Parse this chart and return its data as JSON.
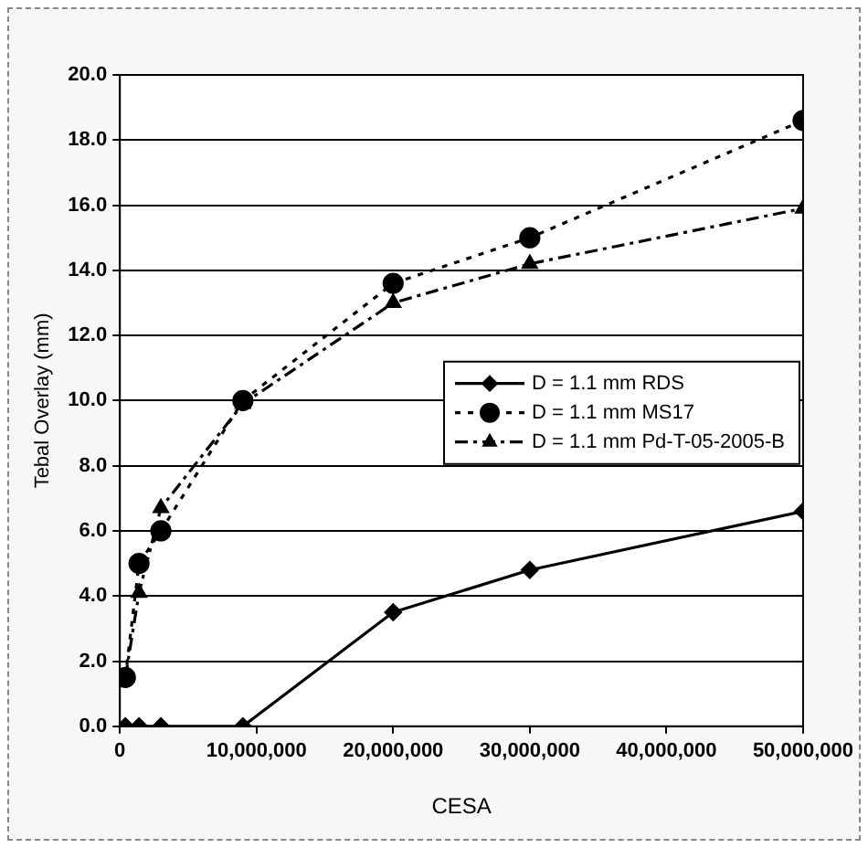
{
  "chart_data": {
    "type": "line",
    "xlabel": "CESA",
    "ylabel": "Tebal Overlay (mm)",
    "x": [
      400000,
      1400000,
      3000000,
      9000000,
      20000000,
      30000000,
      50000000
    ],
    "series": [
      {
        "name": "D = 1.1 mm RDS",
        "color": "#000000",
        "values": [
          0,
          0,
          0,
          0,
          3.5,
          4.8,
          6.6
        ],
        "marker": "diamond",
        "line_style": "solid"
      },
      {
        "name": "D = 1.1 mm MS17",
        "color": "#000000",
        "values": [
          1.5,
          5.0,
          6.0,
          10.0,
          13.6,
          15.0,
          18.6
        ],
        "marker": "circle",
        "line_style": "dotted"
      },
      {
        "name": "D = 1.1 mm Pd-T-05-2005-B",
        "color": "#000000",
        "values": [
          1.5,
          4.1,
          6.7,
          9.9,
          13.0,
          14.2,
          15.9
        ],
        "marker": "triangle",
        "line_style": "dashed"
      }
    ],
    "xlim": [
      0,
      50000000
    ],
    "xticks": [
      0,
      {
        "value": 10000000,
        "label": "10,000,000"
      },
      {
        "value": 20000000,
        "label": "20,000,000"
      },
      {
        "value": 30000000,
        "label": "30,000,000"
      },
      {
        "value": 40000000,
        "label": "40,000,000"
      },
      {
        "value": 50000000,
        "label": "50,000,000"
      }
    ],
    "ylim": [
      0,
      20
    ],
    "yticks": [
      {
        "value": 0,
        "label": "0.0"
      },
      {
        "value": 2,
        "label": "2.0"
      },
      {
        "value": 4,
        "label": "4.0"
      },
      {
        "value": 6,
        "label": "6.0"
      },
      {
        "value": 8,
        "label": "8.0"
      },
      {
        "value": 10,
        "label": "10.0"
      },
      {
        "value": 12,
        "label": "12.0"
      },
      {
        "value": 14,
        "label": "14.0"
      },
      {
        "value": 16,
        "label": "16.0"
      },
      {
        "value": 18,
        "label": "18.0"
      },
      {
        "value": 20,
        "label": "20.0"
      }
    ],
    "grid": "y",
    "legend": "right"
  }
}
